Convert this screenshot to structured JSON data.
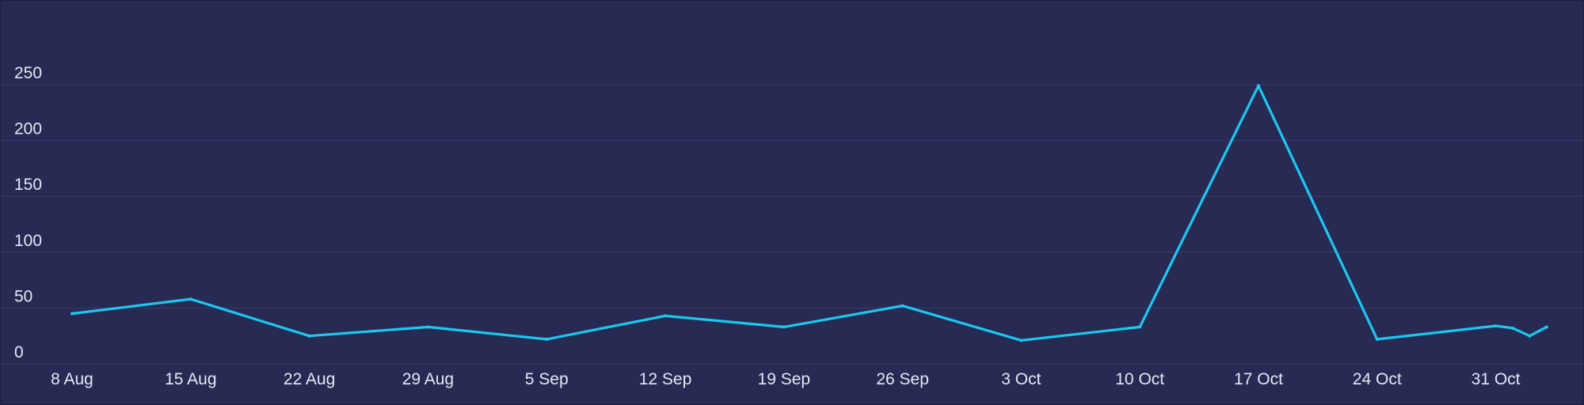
{
  "chart_data": {
    "type": "line",
    "title": "",
    "xlabel": "",
    "ylabel": "",
    "ylim": [
      0,
      250
    ],
    "grid": true,
    "legend": "none",
    "y_ticks": [
      {
        "value": 0,
        "label": "0"
      },
      {
        "value": 50,
        "label": "50"
      },
      {
        "value": 100,
        "label": "100"
      },
      {
        "value": 150,
        "label": "150"
      },
      {
        "value": 200,
        "label": "200"
      },
      {
        "value": 250,
        "label": "250"
      }
    ],
    "x_ticks": [
      {
        "x": "2022-08-08",
        "label": "8 Aug"
      },
      {
        "x": "2022-08-15",
        "label": "15 Aug"
      },
      {
        "x": "2022-08-22",
        "label": "22 Aug"
      },
      {
        "x": "2022-08-29",
        "label": "29 Aug"
      },
      {
        "x": "2022-09-05",
        "label": "5 Sep"
      },
      {
        "x": "2022-09-12",
        "label": "12 Sep"
      },
      {
        "x": "2022-09-19",
        "label": "19 Sep"
      },
      {
        "x": "2022-09-26",
        "label": "26 Sep"
      },
      {
        "x": "2022-10-03",
        "label": "3 Oct"
      },
      {
        "x": "2022-10-10",
        "label": "10 Oct"
      },
      {
        "x": "2022-10-17",
        "label": "17 Oct"
      },
      {
        "x": "2022-10-24",
        "label": "24 Oct"
      },
      {
        "x": "2022-10-31",
        "label": "31 Oct"
      }
    ],
    "series": [
      {
        "color": "#1cc8f0",
        "x": [
          "2022-08-08",
          "2022-08-15",
          "2022-08-22",
          "2022-08-29",
          "2022-09-05",
          "2022-09-12",
          "2022-09-19",
          "2022-09-26",
          "2022-10-03",
          "2022-10-10",
          "2022-10-17",
          "2022-10-24",
          "2022-10-31",
          "2022-11-01",
          "2022-11-02",
          "2022-11-03"
        ],
        "values": [
          45,
          58,
          25,
          33,
          22,
          43,
          33,
          52,
          21,
          33,
          249,
          22,
          34,
          32,
          25,
          33
        ]
      }
    ]
  },
  "colors": {
    "background": "#272a53",
    "grid": "#3a3d6a",
    "text": "#e6e8f3",
    "line": "#1cc8f0"
  }
}
